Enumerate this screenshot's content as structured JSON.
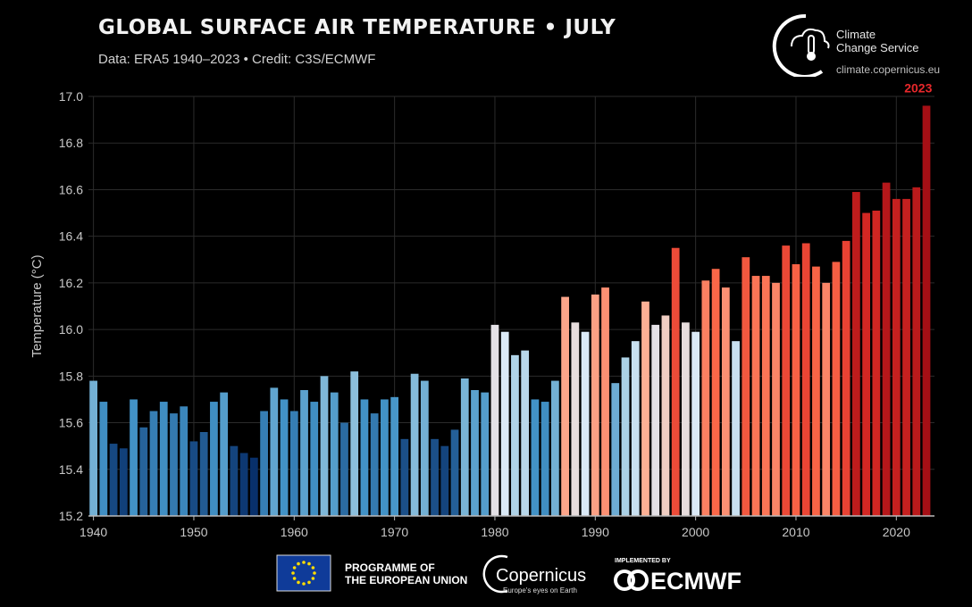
{
  "header": {
    "title": "GLOBAL SURFACE AIR TEMPERATURE • JULY",
    "subtitle": "Data: ERA5 1940–2023 • Credit: C3S/ECMWF"
  },
  "branding": {
    "c3s_line1": "Climate",
    "c3s_line2": "Change Service",
    "c3s_url": "climate.copernicus.eu",
    "eu_line1": "PROGRAMME OF",
    "eu_line2": "THE EUROPEAN UNION",
    "copernicus_name": "Copernicus",
    "copernicus_tagline": "Europe's eyes on Earth",
    "ecmwf_caption": "IMPLEMENTED BY",
    "ecmwf_name": "ECMWF"
  },
  "chart_data": {
    "type": "bar",
    "title": "GLOBAL SURFACE AIR TEMPERATURE • JULY",
    "ylabel": "Temperature (°C)",
    "xlabel": "",
    "ylim": [
      15.2,
      17.0
    ],
    "xlim": [
      1939.5,
      2023.8
    ],
    "yticks": [
      15.2,
      15.4,
      15.6,
      15.8,
      16.0,
      16.2,
      16.4,
      16.6,
      16.8,
      17.0
    ],
    "xticks": [
      1940,
      1950,
      1960,
      1970,
      1980,
      1990,
      2000,
      2010,
      2020
    ],
    "grid": true,
    "annotation": {
      "year": 2023,
      "label": "2023",
      "color": "#e8282b"
    },
    "x": [
      1940,
      1941,
      1942,
      1943,
      1944,
      1945,
      1946,
      1947,
      1948,
      1949,
      1950,
      1951,
      1952,
      1953,
      1954,
      1955,
      1956,
      1957,
      1958,
      1959,
      1960,
      1961,
      1962,
      1963,
      1964,
      1965,
      1966,
      1967,
      1968,
      1969,
      1970,
      1971,
      1972,
      1973,
      1974,
      1975,
      1976,
      1977,
      1978,
      1979,
      1980,
      1981,
      1982,
      1983,
      1984,
      1985,
      1986,
      1987,
      1988,
      1989,
      1990,
      1991,
      1992,
      1993,
      1994,
      1995,
      1996,
      1997,
      1998,
      1999,
      2000,
      2001,
      2002,
      2003,
      2004,
      2005,
      2006,
      2007,
      2008,
      2009,
      2010,
      2011,
      2012,
      2013,
      2014,
      2015,
      2016,
      2017,
      2018,
      2019,
      2020,
      2021,
      2022,
      2023
    ],
    "values": [
      15.78,
      15.69,
      15.51,
      15.49,
      15.7,
      15.58,
      15.65,
      15.69,
      15.64,
      15.67,
      15.52,
      15.56,
      15.69,
      15.73,
      15.5,
      15.47,
      15.45,
      15.65,
      15.75,
      15.7,
      15.65,
      15.74,
      15.69,
      15.8,
      15.73,
      15.6,
      15.82,
      15.7,
      15.64,
      15.7,
      15.71,
      15.53,
      15.81,
      15.78,
      15.53,
      15.5,
      15.57,
      15.79,
      15.74,
      15.73,
      16.02,
      15.99,
      15.89,
      15.91,
      15.7,
      15.69,
      15.78,
      16.14,
      16.03,
      15.99,
      16.15,
      16.18,
      15.77,
      15.88,
      15.95,
      16.12,
      16.02,
      16.06,
      16.35,
      16.03,
      15.99,
      16.21,
      16.26,
      16.18,
      15.95,
      16.31,
      16.23,
      16.23,
      16.2,
      16.36,
      16.28,
      16.37,
      16.27,
      16.2,
      16.29,
      16.38,
      16.59,
      16.5,
      16.51,
      16.63,
      16.56,
      16.56,
      16.61,
      16.96
    ],
    "colors": {
      "cold": "#08306b",
      "neutral": "#dde8f5",
      "warm": "#fcbba1",
      "hot": "#a50f15"
    }
  }
}
